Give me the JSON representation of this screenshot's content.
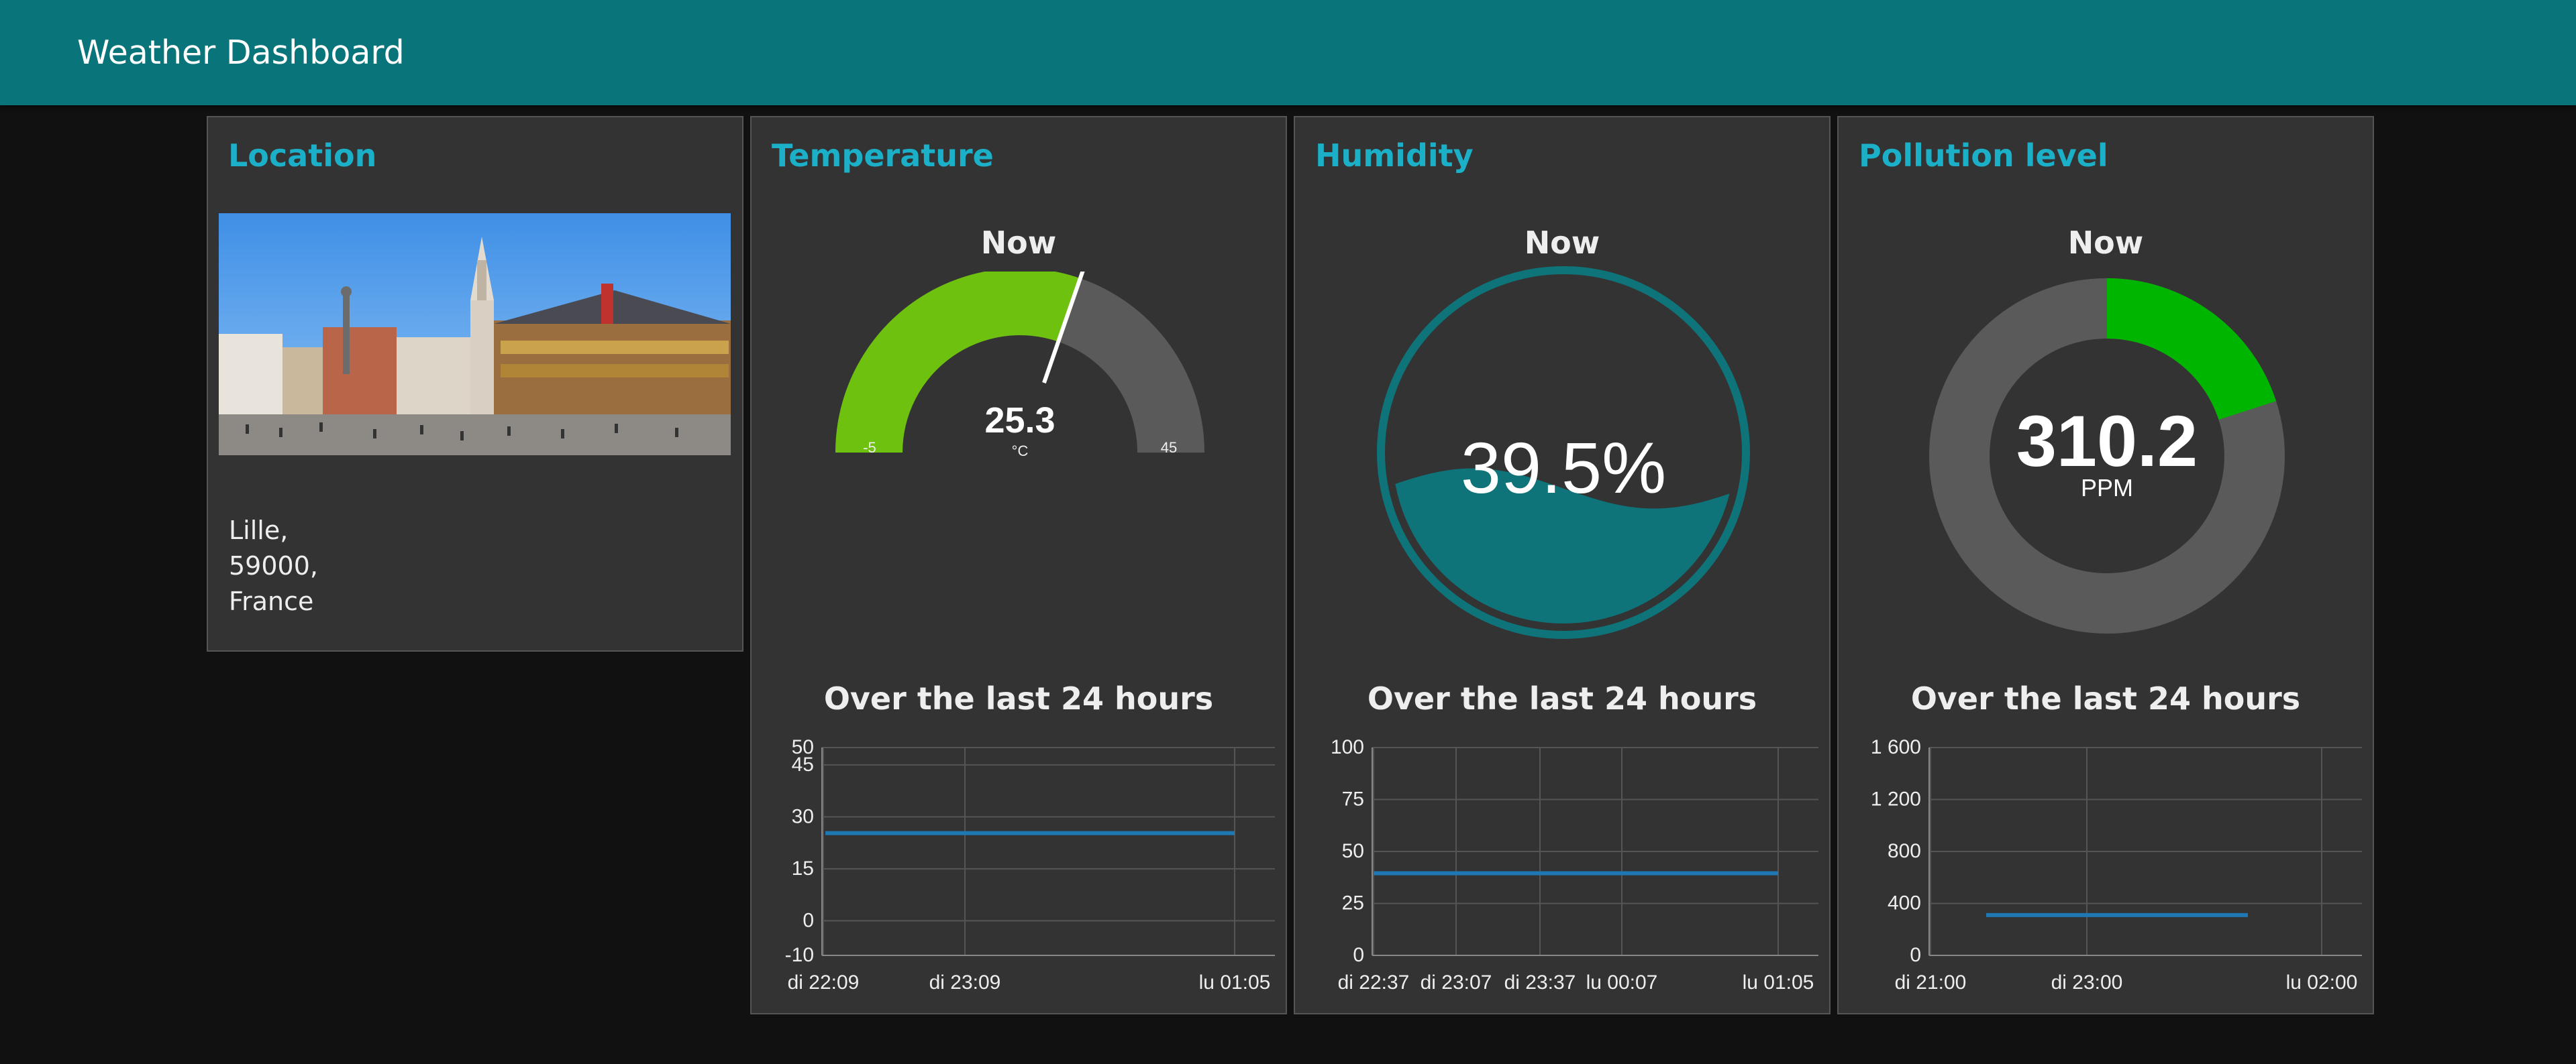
{
  "header": {
    "title": "Weather Dashboard"
  },
  "location": {
    "title": "Location",
    "address_lines": [
      "Lille,",
      "59000,",
      "France"
    ]
  },
  "temperature": {
    "title": "Temperature",
    "now_label": "Now",
    "value": "25.3",
    "value_num": 25.3,
    "unit": "°C",
    "min": "-5",
    "max": "45",
    "min_num": -5,
    "max_num": 45,
    "sub_label": "Over the last 24 hours",
    "gauge_color": "#6ec20f",
    "chart_data": {
      "type": "line",
      "y_ticks": [
        "50",
        "45",
        "30",
        "15",
        "0",
        "-10"
      ],
      "y_tick_values": [
        50,
        45,
        30,
        15,
        0,
        -10
      ],
      "ylim": [
        -10,
        50
      ],
      "x_ticks": [
        "di 22:09",
        "di 23:09",
        "lu 01:05"
      ],
      "series": [
        {
          "x": [
            "di 22:09",
            "lu 01:05"
          ],
          "values": [
            25.3,
            25.3
          ]
        }
      ],
      "line_color": "#1f77b4"
    }
  },
  "humidity": {
    "title": "Humidity",
    "now_label": "Now",
    "value": "39.5%",
    "value_num": 39.5,
    "sub_label": "Over the last 24 hours",
    "fill_color": "#0e7479",
    "chart_data": {
      "type": "line",
      "y_ticks": [
        "100",
        "75",
        "50",
        "25",
        "0"
      ],
      "y_tick_values": [
        100,
        75,
        50,
        25,
        0
      ],
      "ylim": [
        0,
        100
      ],
      "x_ticks": [
        "di 22:37",
        "di 23:07",
        "di 23:37",
        "lu 00:07",
        "lu 01:05"
      ],
      "series": [
        {
          "x": [
            "di 22:37",
            "lu 01:05"
          ],
          "values": [
            39.5,
            39.5
          ]
        }
      ],
      "line_color": "#1f77b4"
    }
  },
  "pollution": {
    "title": "Pollution level",
    "now_label": "Now",
    "value": "310.2",
    "value_num": 310.2,
    "unit": "PPM",
    "donut_fraction": 0.2,
    "donut_color": "#00b500",
    "sub_label": "Over the last 24 hours",
    "chart_data": {
      "type": "line",
      "y_ticks": [
        "1 600",
        "1 200",
        "800",
        "400",
        "0"
      ],
      "y_tick_values": [
        1600,
        1200,
        800,
        400,
        0
      ],
      "ylim": [
        0,
        1600
      ],
      "x_ticks": [
        "di 21:00",
        "di 23:00",
        "lu 02:00"
      ],
      "series": [
        {
          "x": [
            "di 21:20",
            "lu 00:40"
          ],
          "values": [
            310.2,
            310.2
          ]
        }
      ],
      "line_color": "#1f77b4"
    }
  }
}
